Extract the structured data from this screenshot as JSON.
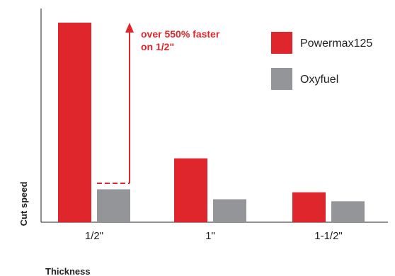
{
  "chart_data": {
    "type": "bar",
    "xlabel": "Thickness",
    "ylabel": "Cut speed",
    "categories": [
      "1/2\"",
      "1\"",
      "1-1/2\""
    ],
    "series": [
      {
        "name": "Powermax125",
        "color": "#e0262d",
        "values": [
          100,
          32,
          15
        ]
      },
      {
        "name": "Oxyfuel",
        "color": "#939598",
        "values": [
          16.5,
          11.5,
          10.5
        ]
      }
    ],
    "ylim": [
      0,
      100
    ],
    "grid": false,
    "legend_position": "top-right",
    "annotation": {
      "lines": [
        "over 550% faster",
        "on 1/2\""
      ],
      "color": "#e0262d"
    }
  }
}
